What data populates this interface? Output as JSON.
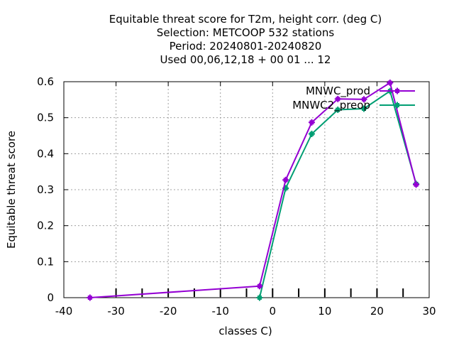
{
  "chart_data": {
    "type": "line",
    "title_lines": [
      "Equitable threat score  for T2m, height corr. (deg C)",
      "Selection: METCOOP    532 stations",
      "Period: 20240801-20240820",
      "Used  00,06,12,18 + 00 01 ... 12"
    ],
    "xlabel": "classes C)",
    "ylabel": "Equitable threat score",
    "xlim": [
      -40,
      30
    ],
    "ylim": [
      0,
      0.6
    ],
    "xticks": [
      -40,
      -30,
      -20,
      -10,
      0,
      10,
      20,
      30
    ],
    "yticks": [
      0,
      0.1,
      0.2,
      0.3,
      0.4,
      0.5,
      0.6
    ],
    "xtick_labels": [
      "-40",
      "-30",
      "-20",
      "-10",
      "0",
      "10",
      "20",
      "30"
    ],
    "ytick_labels": [
      "0",
      "0.1",
      "0.2",
      "0.3",
      "0.4",
      "0.5",
      "0.6"
    ],
    "grid": true,
    "legend_position": "top-right",
    "series": [
      {
        "name": "MNWC_prod",
        "color": "#9400d3",
        "x": [
          -35,
          -2.5,
          2.5,
          7.5,
          12.5,
          17.5,
          22.5,
          27.5
        ],
        "y": [
          0.0,
          0.032,
          0.327,
          0.487,
          0.552,
          0.551,
          0.597,
          0.314
        ]
      },
      {
        "name": "MNWC2_preop",
        "color": "#009e73",
        "x": [
          -2.5,
          2.5,
          7.5,
          12.5,
          17.5,
          22.5,
          27.5
        ],
        "y": [
          0.0,
          0.304,
          0.455,
          0.522,
          0.525,
          0.574,
          0.316
        ]
      }
    ]
  }
}
